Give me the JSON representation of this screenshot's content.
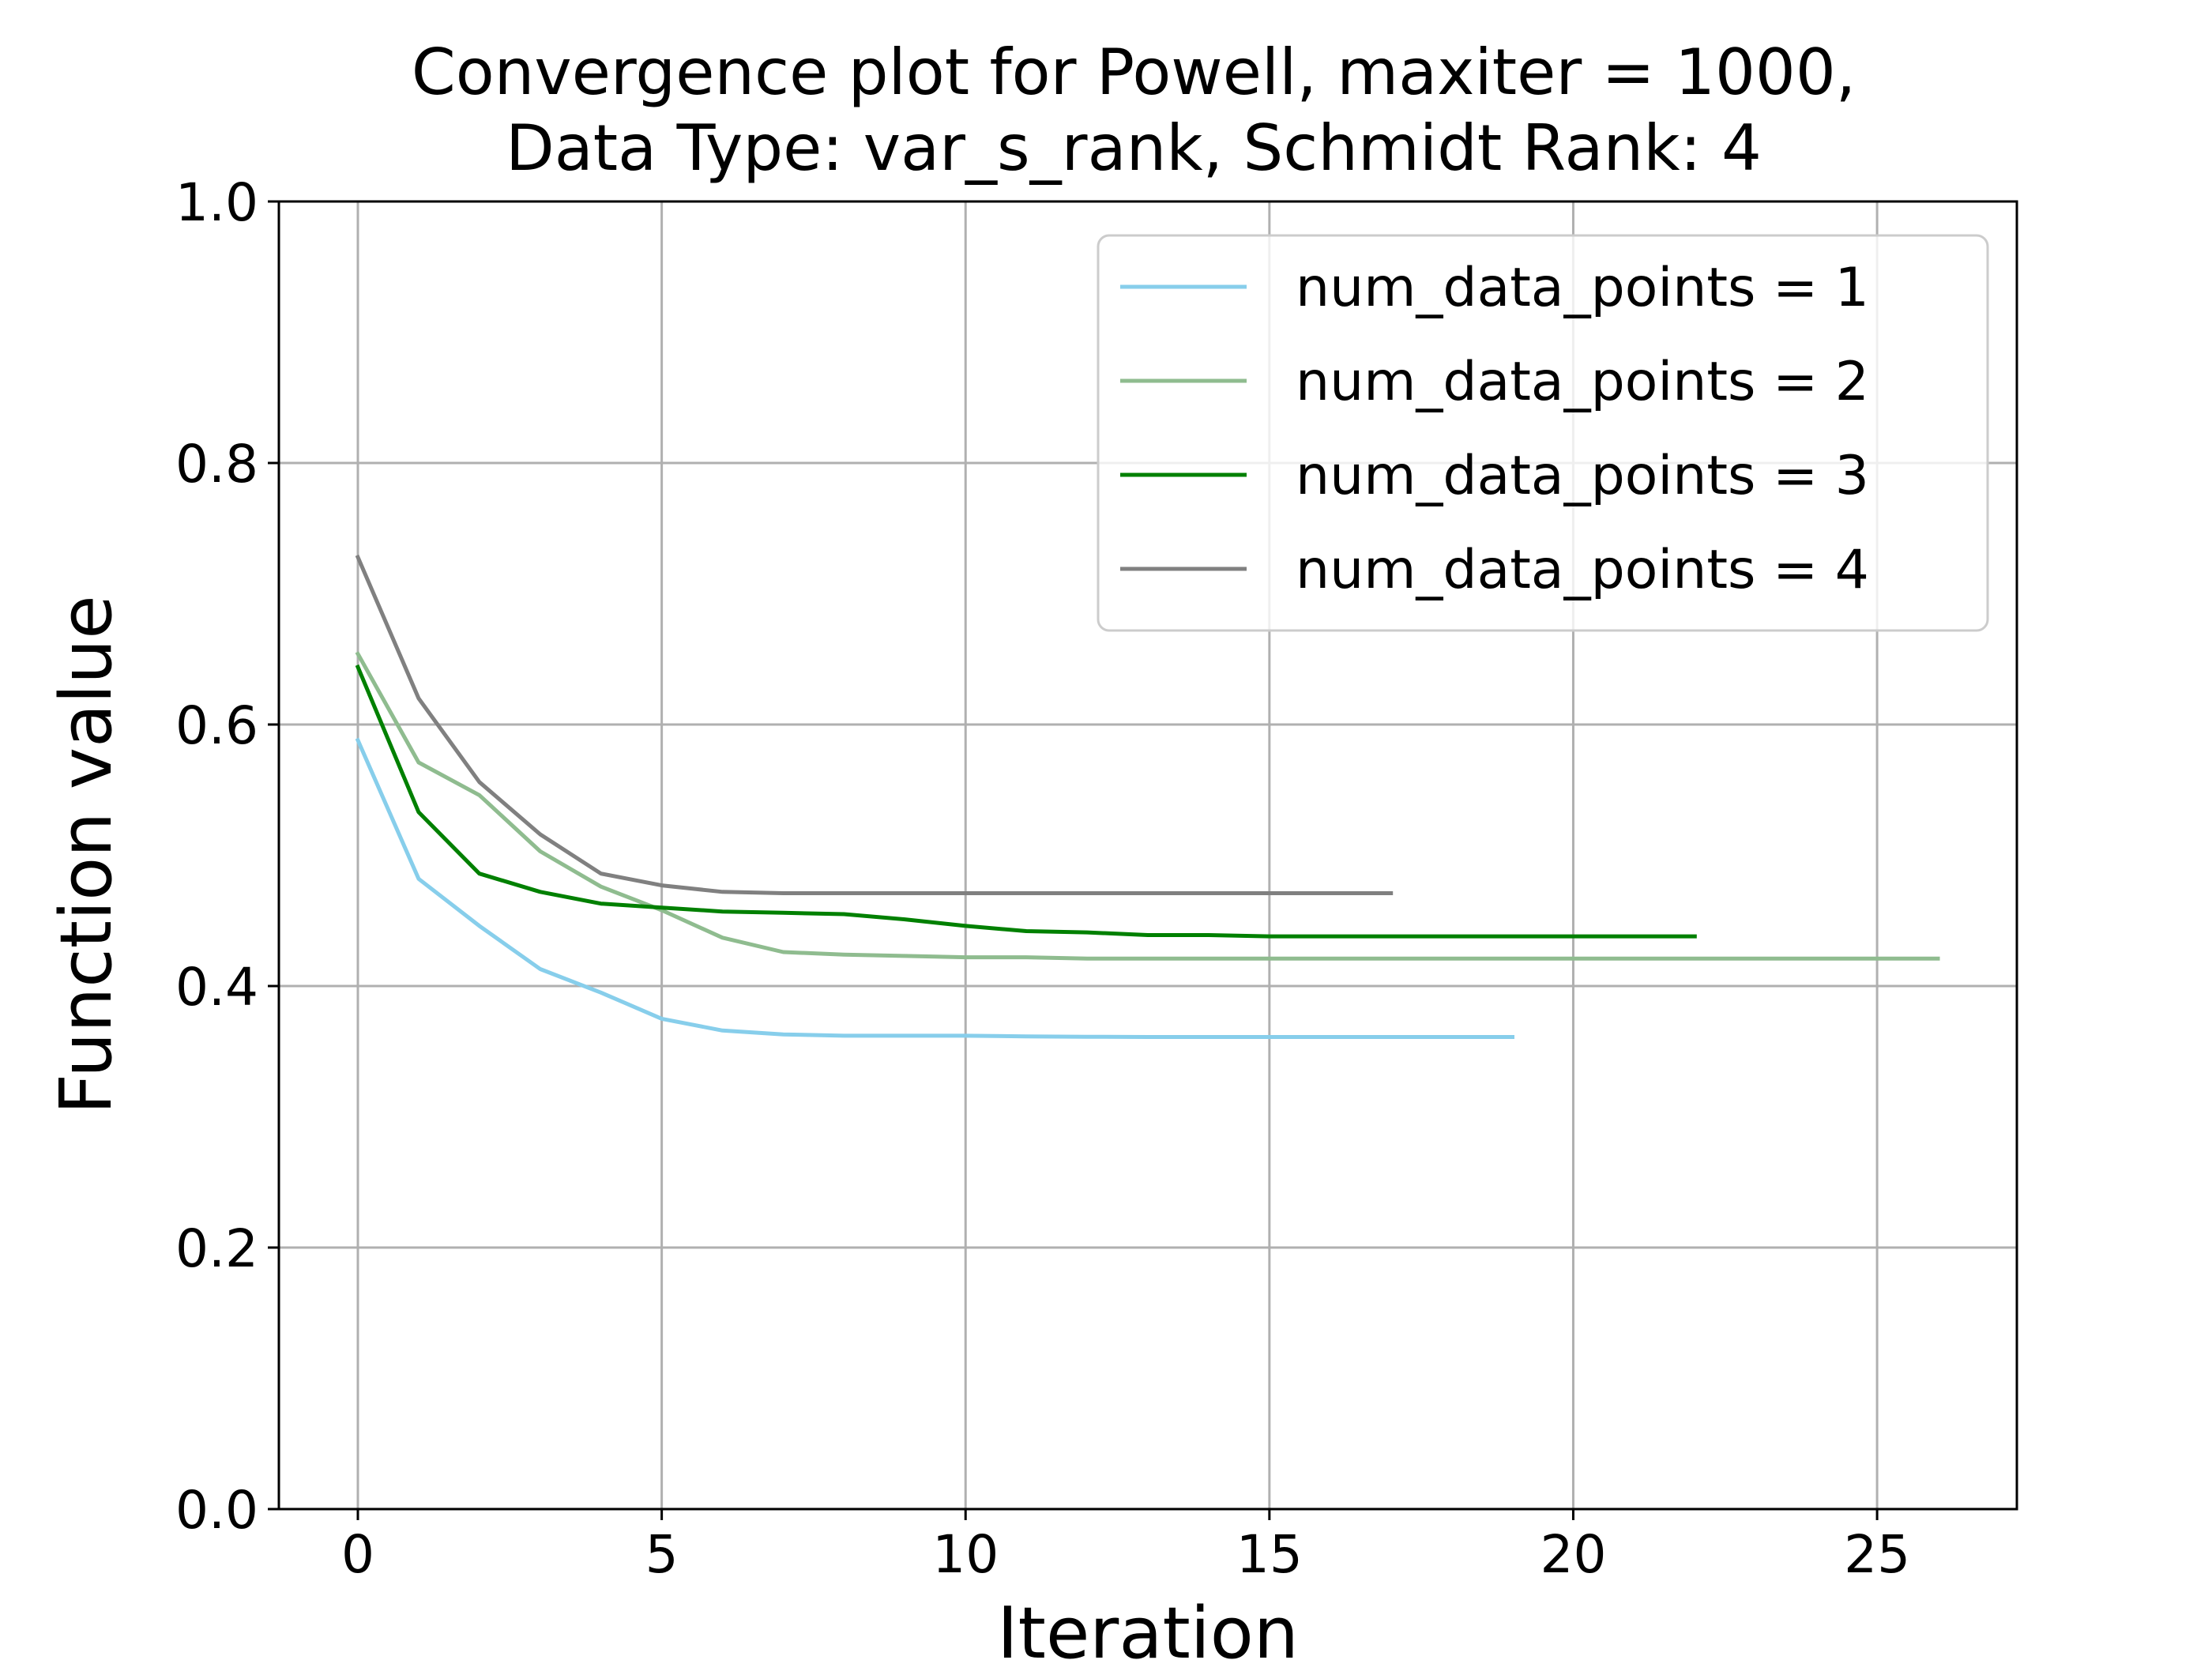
{
  "chart_data": {
    "type": "line",
    "title": [
      "Convergence plot for Powell, maxiter = 1000,",
      "Data Type: var_s_rank, Schmidt Rank: 4"
    ],
    "xlabel": "Iteration",
    "ylabel": "Function value",
    "xlim": [
      -1.3,
      27.3
    ],
    "ylim": [
      0.0,
      1.0
    ],
    "xticks": [
      0,
      5,
      10,
      15,
      20,
      25
    ],
    "xtick_labels": [
      "0",
      "5",
      "10",
      "15",
      "20",
      "25"
    ],
    "yticks": [
      0.0,
      0.2,
      0.4,
      0.6,
      0.8,
      1.0
    ],
    "ytick_labels": [
      "0.0",
      "0.2",
      "0.4",
      "0.6",
      "0.8",
      "1.0"
    ],
    "grid": true,
    "legend_position": "top-right",
    "series": [
      {
        "name": "num_data_points = 1",
        "color": "#87ceeb",
        "x": [
          0,
          1,
          2,
          3,
          4,
          5,
          6,
          7,
          8,
          9,
          10,
          11,
          12,
          13,
          14,
          15,
          16,
          17,
          18,
          19
        ],
        "y": [
          0.588,
          0.482,
          0.446,
          0.413,
          0.395,
          0.375,
          0.366,
          0.363,
          0.362,
          0.362,
          0.362,
          0.3615,
          0.3612,
          0.361,
          0.361,
          0.361,
          0.361,
          0.361,
          0.361,
          0.361
        ]
      },
      {
        "name": "num_data_points = 2",
        "color": "#8fbc8f",
        "x": [
          0,
          1,
          2,
          3,
          4,
          5,
          6,
          7,
          8,
          9,
          10,
          11,
          12,
          13,
          14,
          15,
          16,
          17,
          18,
          19,
          20,
          21,
          22,
          23,
          24,
          25,
          26
        ],
        "y": [
          0.654,
          0.571,
          0.546,
          0.503,
          0.476,
          0.458,
          0.437,
          0.426,
          0.424,
          0.423,
          0.422,
          0.422,
          0.421,
          0.421,
          0.421,
          0.421,
          0.421,
          0.421,
          0.421,
          0.421,
          0.421,
          0.421,
          0.421,
          0.421,
          0.421,
          0.421,
          0.421
        ]
      },
      {
        "name": "num_data_points = 3",
        "color": "#008000",
        "x": [
          0,
          1,
          2,
          3,
          4,
          5,
          6,
          7,
          8,
          9,
          10,
          11,
          12,
          13,
          14,
          15,
          16,
          17,
          18,
          19,
          20,
          21,
          22
        ],
        "y": [
          0.644,
          0.533,
          0.486,
          0.472,
          0.463,
          0.46,
          0.457,
          0.456,
          0.455,
          0.451,
          0.446,
          0.442,
          0.441,
          0.439,
          0.439,
          0.438,
          0.438,
          0.438,
          0.438,
          0.438,
          0.438,
          0.438,
          0.438
        ]
      },
      {
        "name": "num_data_points = 4",
        "color": "#808080",
        "x": [
          0,
          1,
          2,
          3,
          4,
          5,
          6,
          7,
          8,
          9,
          10,
          11,
          12,
          13,
          14,
          15,
          16,
          17
        ],
        "y": [
          0.728,
          0.62,
          0.556,
          0.516,
          0.486,
          0.477,
          0.472,
          0.471,
          0.471,
          0.471,
          0.471,
          0.471,
          0.471,
          0.471,
          0.471,
          0.471,
          0.471,
          0.471
        ]
      }
    ]
  }
}
